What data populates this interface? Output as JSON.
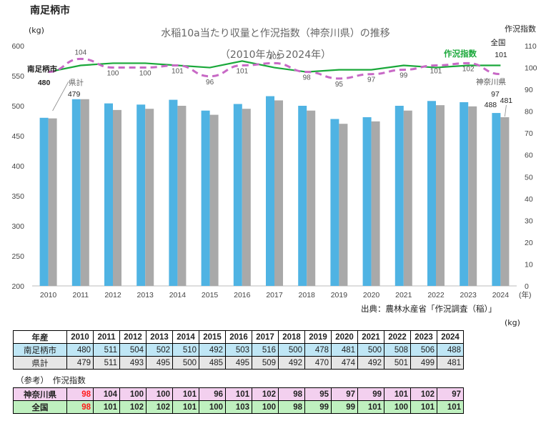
{
  "page_title": "南足柄市",
  "source_note": "出典：農林水産省「作況調査（稲）」",
  "table_unit": "(kg)",
  "reference_note": "（参考）　作況指数",
  "colors": {
    "minami": "#4fb3e3",
    "ken": "#a9a9a9",
    "sakkyo_national": "#1aa83a",
    "sakkyo_kanagawa": "#c869c6",
    "row_minami_bg": "#bfe6f5",
    "row_kanagawa_bg": "#f3d0ef",
    "row_national_bg": "#bff0bf",
    "highlight": "#ff1a1a"
  },
  "chart_data": {
    "type": "bar",
    "title": "水稲10a当たり収量と作況指数（神奈川県）の推移",
    "subtitle": "（2010年から2024年）",
    "ylabel": "(kg)",
    "y2label": "作況指数",
    "xunit": "(年)",
    "categories": [
      "2010",
      "2011",
      "2012",
      "2013",
      "2014",
      "2015",
      "2016",
      "2017",
      "2018",
      "2019",
      "2020",
      "2021",
      "2022",
      "2023",
      "2024"
    ],
    "ylim": [
      200,
      600
    ],
    "yticks": [
      200,
      250,
      300,
      350,
      400,
      450,
      500,
      550,
      600
    ],
    "y2lim": [
      0,
      110
    ],
    "y2ticks": [
      0,
      10,
      20,
      30,
      40,
      50,
      60,
      70,
      80,
      90,
      100,
      110
    ],
    "grid": false,
    "series": [
      {
        "name": "南足柄市",
        "kind": "bar",
        "values": [
          480,
          511,
          504,
          502,
          510,
          492,
          503,
          516,
          500,
          478,
          481,
          500,
          508,
          506,
          488
        ]
      },
      {
        "name": "県計",
        "kind": "bar",
        "values": [
          479,
          511,
          493,
          495,
          500,
          485,
          495,
          509,
          492,
          470,
          474,
          492,
          501,
          499,
          481
        ]
      },
      {
        "name": "作況指数",
        "kind": "line",
        "axis": "right",
        "values": [
          98,
          101,
          102,
          102,
          101,
          100,
          103,
          100,
          98,
          99,
          99,
          101,
          100,
          101,
          101
        ]
      },
      {
        "name": "神奈川県",
        "kind": "line",
        "axis": "right",
        "dashed": true,
        "values": [
          98,
          104,
          100,
          100,
          101,
          96,
          101,
          102,
          98,
          95,
          97,
          99,
          101,
          102,
          97
        ]
      }
    ],
    "annotations": [
      {
        "text": "南足柄市"
      },
      {
        "text": "480"
      },
      {
        "text": "県計"
      },
      {
        "text": "479"
      },
      {
        "text": "全国"
      },
      {
        "text": "101"
      },
      {
        "text": "作況指数"
      },
      {
        "text": "神奈川県"
      },
      {
        "text": "97"
      },
      {
        "text": "488"
      },
      {
        "text": "481"
      }
    ]
  },
  "table": {
    "header_label": "年産",
    "years": [
      "2010",
      "2011",
      "2012",
      "2013",
      "2014",
      "2015",
      "2016",
      "2017",
      "2018",
      "2019",
      "2020",
      "2021",
      "2022",
      "2023",
      "2024"
    ],
    "rows": [
      {
        "label": "南足柄市",
        "values": [
          "480",
          "511",
          "504",
          "502",
          "510",
          "492",
          "503",
          "516",
          "500",
          "478",
          "481",
          "500",
          "508",
          "506",
          "488"
        ]
      },
      {
        "label": "県計",
        "values": [
          "479",
          "511",
          "493",
          "495",
          "500",
          "485",
          "495",
          "509",
          "492",
          "470",
          "474",
          "492",
          "501",
          "499",
          "481"
        ]
      }
    ],
    "ref_rows": [
      {
        "label": "神奈川県",
        "values": [
          "98",
          "104",
          "100",
          "100",
          "101",
          "96",
          "101",
          "102",
          "98",
          "95",
          "97",
          "99",
          "101",
          "102",
          "97"
        ]
      },
      {
        "label": "全国",
        "values": [
          "98",
          "101",
          "102",
          "102",
          "101",
          "100",
          "103",
          "100",
          "98",
          "99",
          "99",
          "101",
          "100",
          "101",
          "101"
        ]
      }
    ]
  }
}
